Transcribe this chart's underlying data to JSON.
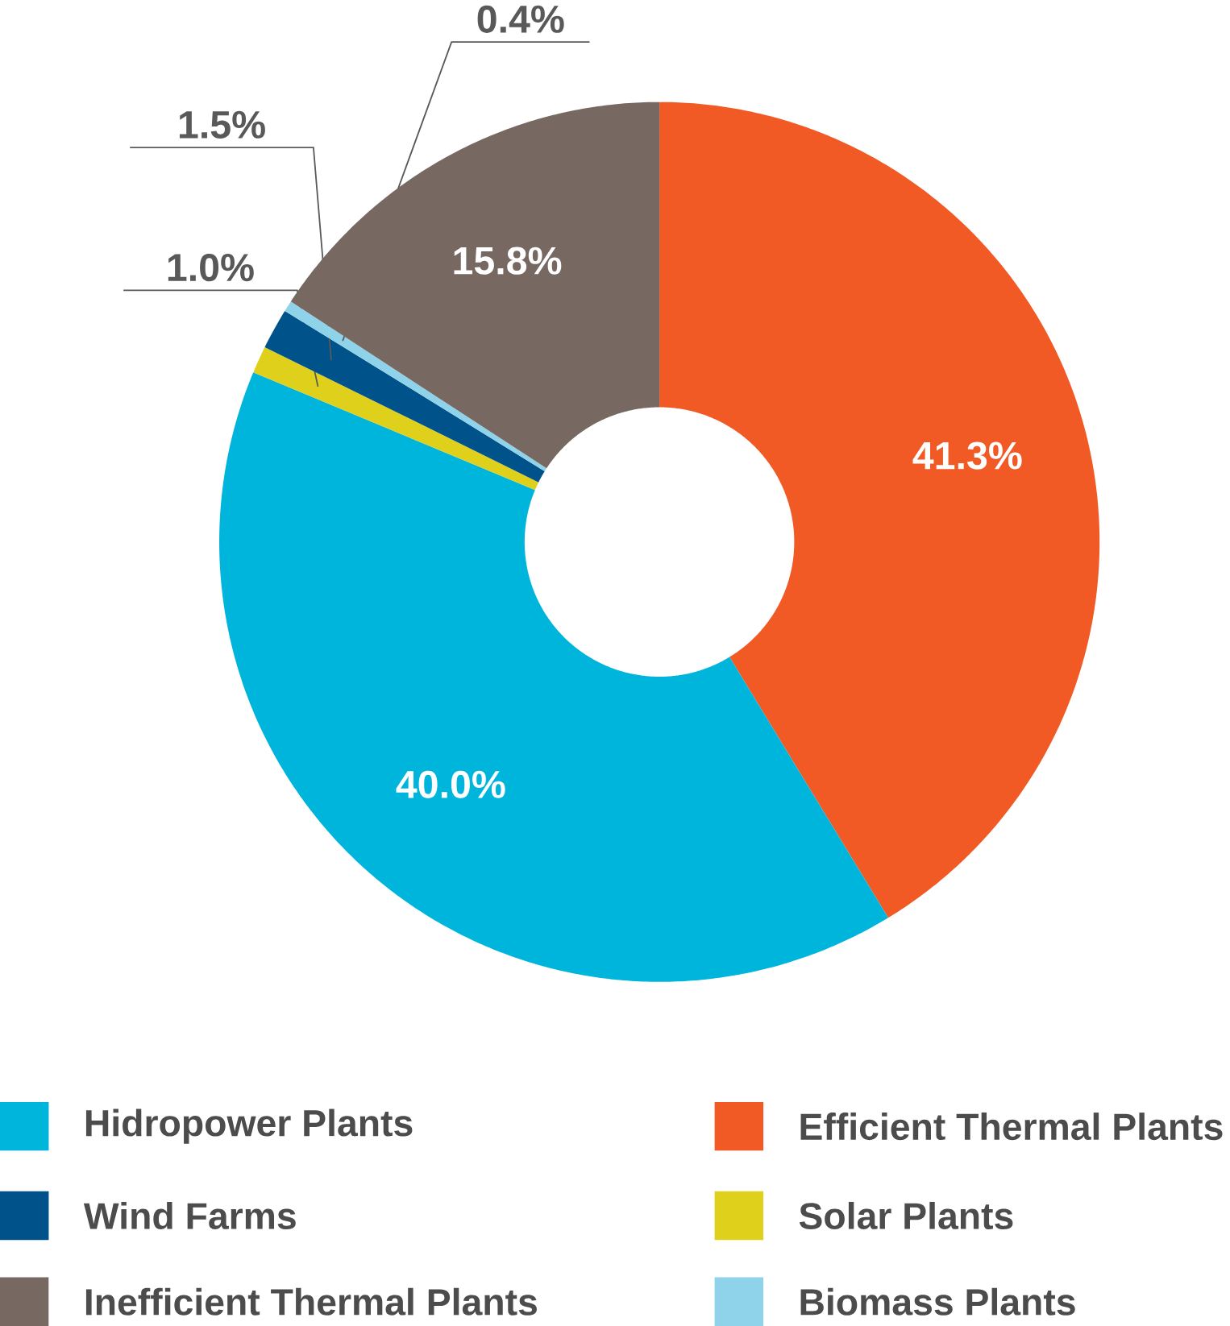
{
  "chart_data": {
    "type": "donut",
    "categories": [
      "Efficient Thermal Plants",
      "Hidropower Plants",
      "Solar Plants",
      "Wind Farms",
      "Biomass Plants",
      "Inefficient Thermal Plants"
    ],
    "values": [
      41.3,
      40.0,
      1.0,
      1.5,
      0.4,
      15.8
    ],
    "colors": [
      "#f15a24",
      "#00b5dc",
      "#dfd01c",
      "#00538a",
      "#8fd3ea",
      "#776962"
    ],
    "value_labels": [
      "41.3%",
      "40.0%",
      "1.0%",
      "1.5%",
      "0.4%",
      "15.8%"
    ],
    "legend": "bottom"
  }
}
